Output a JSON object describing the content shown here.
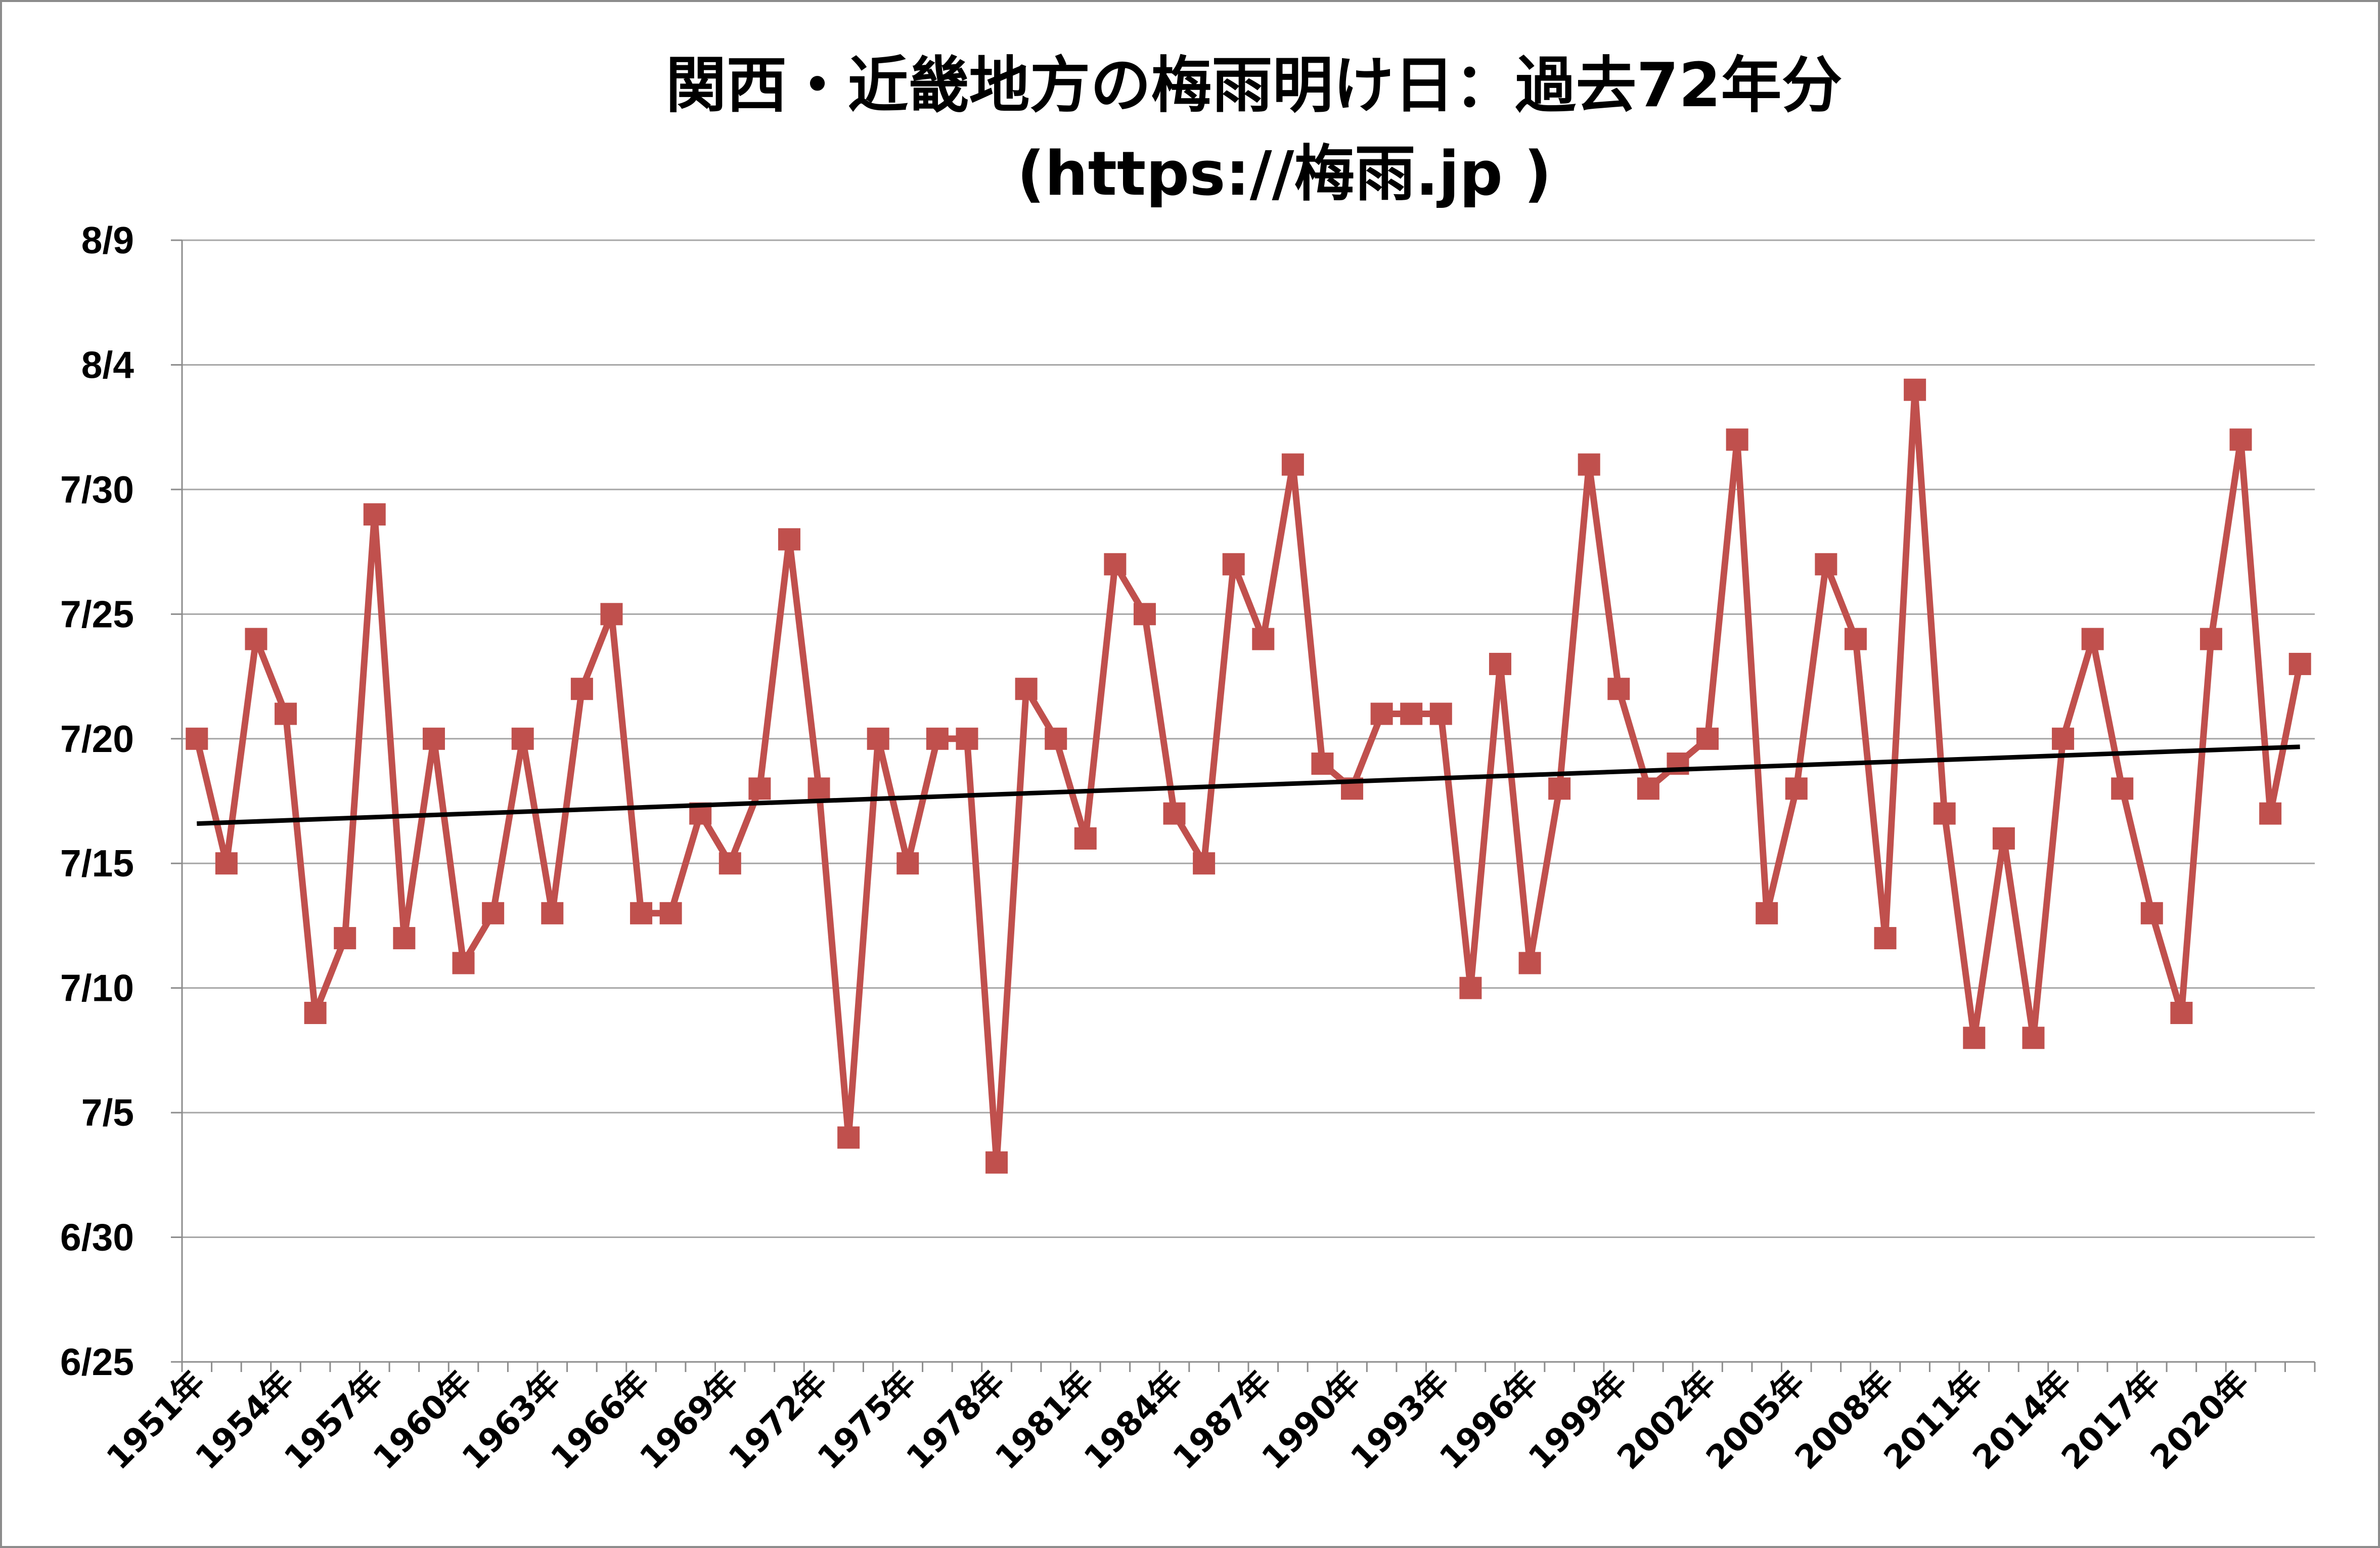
{
  "chart_data": {
    "type": "line",
    "title_line1": "関西・近畿地方の梅雨明け日：過去72年分",
    "title_line2": "(https://梅雨.jp )",
    "ylabel": "",
    "xlabel": "",
    "ylim": [
      "6/25",
      "8/9"
    ],
    "y_ticks": [
      "6/25",
      "6/30",
      "7/5",
      "7/10",
      "7/15",
      "7/20",
      "7/25",
      "7/30",
      "8/4",
      "8/9"
    ],
    "x_tick_labels": [
      "1951年",
      "1954年",
      "1957年",
      "1960年",
      "1963年",
      "1966年",
      "1969年",
      "1972年",
      "1975年",
      "1978年",
      "1981年",
      "1984年",
      "1987年",
      "1990年",
      "1993年",
      "1996年",
      "1999年",
      "2002年",
      "2005年",
      "2008年",
      "2011年",
      "2014年",
      "2017年",
      "2020年"
    ],
    "grid": true,
    "legend": "none",
    "series": [
      {
        "color": "#c0504d",
        "marker": "square",
        "years": [
          1951,
          1952,
          1953,
          1954,
          1955,
          1956,
          1957,
          1958,
          1959,
          1960,
          1961,
          1962,
          1963,
          1964,
          1965,
          1966,
          1967,
          1968,
          1969,
          1970,
          1971,
          1972,
          1973,
          1974,
          1975,
          1976,
          1977,
          1978,
          1979,
          1980,
          1981,
          1982,
          1983,
          1984,
          1985,
          1986,
          1987,
          1988,
          1989,
          1990,
          1991,
          1992,
          1993,
          1994,
          1995,
          1996,
          1997,
          1998,
          1999,
          2000,
          2001,
          2002,
          2003,
          2004,
          2005,
          2006,
          2007,
          2008,
          2009,
          2010,
          2011,
          2012,
          2013,
          2014,
          2015,
          2016,
          2017,
          2018,
          2019,
          2020,
          2021,
          2022
        ],
        "values": [
          "7/20",
          "7/15",
          "7/24",
          "7/21",
          "7/9",
          "7/12",
          "7/29",
          "7/12",
          "7/20",
          "7/11",
          "7/13",
          "7/20",
          "7/13",
          "7/22",
          "7/25",
          "7/13",
          "7/13",
          "7/17",
          "7/15",
          "7/18",
          "7/28",
          "7/18",
          "7/4",
          "7/20",
          "7/15",
          "7/20",
          "7/20",
          "7/3",
          "7/22",
          "7/20",
          "7/16",
          "7/27",
          "7/25",
          "7/17",
          "7/15",
          "7/27",
          "7/24",
          "7/31",
          "7/19",
          "7/18",
          "7/21",
          "7/21",
          "7/21",
          "7/10",
          "7/23",
          "7/11",
          "7/18",
          "7/31",
          "7/22",
          "7/18",
          "7/19",
          "7/20",
          "8/1",
          "7/13",
          "7/18",
          "7/27",
          "7/24",
          "7/12",
          "8/3",
          "7/17",
          "7/8",
          "7/16",
          "7/8",
          "7/20",
          "7/24",
          "7/18",
          "7/13",
          "7/9",
          "7/24",
          "8/1",
          "7/17",
          "7/23"
        ]
      }
    ],
    "trendline": {
      "color": "#000000",
      "start": "7/17",
      "end": "7/20"
    }
  }
}
